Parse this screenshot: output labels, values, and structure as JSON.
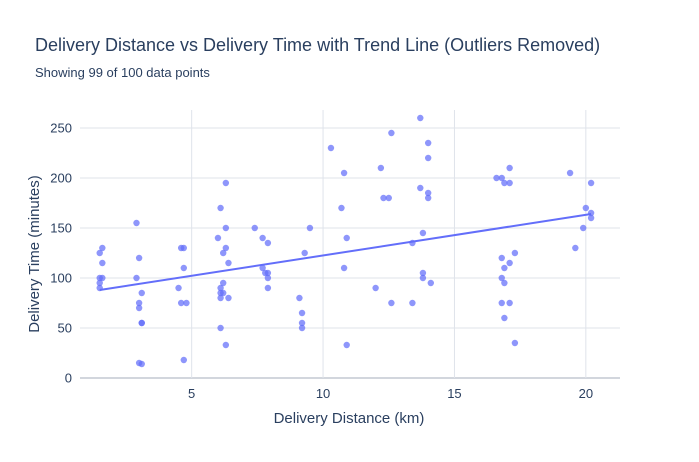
{
  "title": "Delivery Distance vs Delivery Time with Trend Line (Outliers Removed)",
  "subtitle": "Showing 99 of 100 data points",
  "colors": {
    "points": "#636efa",
    "trend": "#636efa",
    "text": "#2a3f5f",
    "grid": "#dfe3ea",
    "background": "#ffffff"
  },
  "chart_data": {
    "type": "scatter",
    "title": "Delivery Distance vs Delivery Time with Trend Line (Outliers Removed)",
    "subtitle": "Showing 99 of 100 data points",
    "xlabel": "Delivery Distance (km)",
    "ylabel": "Delivery Time (minutes)",
    "xlim": [
      0.75,
      21.3
    ],
    "ylim": [
      0,
      268
    ],
    "xticks": [
      5,
      10,
      15,
      20
    ],
    "yticks": [
      0,
      50,
      100,
      150,
      200,
      250
    ],
    "grid": true,
    "legend": "none",
    "series": [
      {
        "type": "scatter",
        "points": [
          [
            1.5,
            125
          ],
          [
            1.6,
            130
          ],
          [
            1.6,
            115
          ],
          [
            1.5,
            100
          ],
          [
            1.6,
            100
          ],
          [
            1.5,
            95
          ],
          [
            1.5,
            90
          ],
          [
            2.9,
            155
          ],
          [
            3.0,
            120
          ],
          [
            2.9,
            100
          ],
          [
            3.1,
            85
          ],
          [
            3.0,
            75
          ],
          [
            3.0,
            70
          ],
          [
            3.1,
            55
          ],
          [
            3.1,
            55
          ],
          [
            3.0,
            15
          ],
          [
            3.1,
            14
          ],
          [
            4.5,
            90
          ],
          [
            4.6,
            130
          ],
          [
            4.7,
            130
          ],
          [
            4.7,
            110
          ],
          [
            4.6,
            75
          ],
          [
            4.8,
            75
          ],
          [
            4.7,
            18
          ],
          [
            6.0,
            140
          ],
          [
            6.1,
            170
          ],
          [
            6.3,
            195
          ],
          [
            6.3,
            150
          ],
          [
            6.3,
            130
          ],
          [
            6.2,
            125
          ],
          [
            6.4,
            115
          ],
          [
            6.2,
            95
          ],
          [
            6.1,
            90
          ],
          [
            6.1,
            85
          ],
          [
            6.2,
            85
          ],
          [
            6.1,
            80
          ],
          [
            6.4,
            80
          ],
          [
            6.1,
            50
          ],
          [
            6.3,
            33
          ],
          [
            7.4,
            150
          ],
          [
            7.7,
            140
          ],
          [
            7.9,
            135
          ],
          [
            7.7,
            110
          ],
          [
            7.8,
            105
          ],
          [
            7.9,
            105
          ],
          [
            7.9,
            100
          ],
          [
            7.9,
            90
          ],
          [
            9.1,
            80
          ],
          [
            9.2,
            65
          ],
          [
            9.2,
            55
          ],
          [
            9.2,
            50
          ],
          [
            9.3,
            125
          ],
          [
            9.5,
            150
          ],
          [
            10.3,
            230
          ],
          [
            10.8,
            205
          ],
          [
            10.7,
            170
          ],
          [
            10.9,
            140
          ],
          [
            10.8,
            110
          ],
          [
            10.9,
            33
          ],
          [
            12.0,
            90
          ],
          [
            12.2,
            210
          ],
          [
            12.3,
            180
          ],
          [
            12.5,
            180
          ],
          [
            12.6,
            245
          ],
          [
            12.6,
            75
          ],
          [
            13.4,
            135
          ],
          [
            13.4,
            75
          ],
          [
            13.7,
            260
          ],
          [
            13.7,
            190
          ],
          [
            13.8,
            145
          ],
          [
            13.8,
            105
          ],
          [
            13.8,
            100
          ],
          [
            14.0,
            235
          ],
          [
            14.0,
            220
          ],
          [
            14.0,
            185
          ],
          [
            14.0,
            180
          ],
          [
            14.1,
            95
          ],
          [
            16.6,
            200
          ],
          [
            16.8,
            200
          ],
          [
            16.9,
            195
          ],
          [
            17.1,
            195
          ],
          [
            17.1,
            210
          ],
          [
            16.8,
            120
          ],
          [
            17.1,
            115
          ],
          [
            16.9,
            110
          ],
          [
            16.8,
            100
          ],
          [
            16.9,
            95
          ],
          [
            16.8,
            75
          ],
          [
            17.1,
            75
          ],
          [
            16.9,
            60
          ],
          [
            17.3,
            125
          ],
          [
            17.3,
            35
          ],
          [
            19.4,
            205
          ],
          [
            19.6,
            130
          ],
          [
            19.9,
            150
          ],
          [
            20.0,
            170
          ],
          [
            20.2,
            195
          ],
          [
            20.2,
            165
          ],
          [
            20.2,
            160
          ]
        ]
      },
      {
        "type": "line",
        "points": [
          [
            1.5,
            88
          ],
          [
            20.2,
            164
          ]
        ]
      }
    ]
  }
}
